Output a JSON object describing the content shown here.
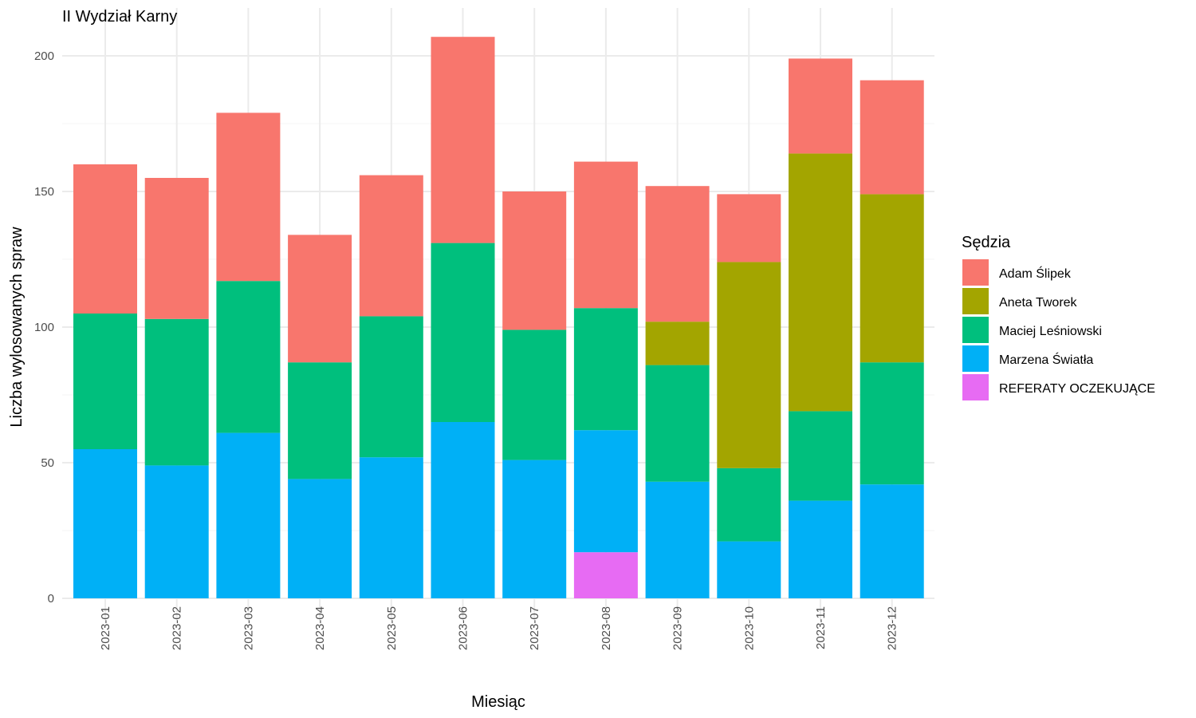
{
  "chart_data": {
    "type": "bar",
    "stacked": true,
    "title": "II Wydział Karny",
    "xlabel": "Miesiąc",
    "ylabel": "Liczba wylosowanych spraw",
    "ylim": [
      0,
      210
    ],
    "yticks": [
      0,
      50,
      100,
      150,
      200
    ],
    "grid": true,
    "legend_title": "Sędzia",
    "legend_position": "right",
    "categories": [
      "2023-01",
      "2023-02",
      "2023-03",
      "2023-04",
      "2023-05",
      "2023-06",
      "2023-07",
      "2023-08",
      "2023-09",
      "2023-10",
      "2023-11",
      "2023-12"
    ],
    "series": [
      {
        "name": "REFERATY OCZEKUJĄCE",
        "color": "#E76BF3",
        "values": [
          0,
          0,
          0,
          0,
          0,
          0,
          0,
          17,
          0,
          0,
          0,
          0
        ]
      },
      {
        "name": "Marzena Światła",
        "color": "#00B0F6",
        "values": [
          55,
          49,
          61,
          44,
          52,
          65,
          51,
          45,
          43,
          21,
          36,
          42
        ]
      },
      {
        "name": "Maciej Leśniowski",
        "color": "#00BF7D",
        "values": [
          50,
          54,
          56,
          43,
          52,
          66,
          48,
          45,
          43,
          27,
          33,
          45
        ]
      },
      {
        "name": "Aneta Tworek",
        "color": "#A3A500",
        "values": [
          0,
          0,
          0,
          0,
          0,
          0,
          0,
          0,
          16,
          76,
          95,
          62
        ]
      },
      {
        "name": "Adam Ślipek",
        "color": "#F8766D",
        "values": [
          55,
          52,
          62,
          47,
          52,
          76,
          51,
          54,
          50,
          25,
          35,
          42
        ]
      }
    ],
    "legend_order": [
      "Adam Ślipek",
      "Aneta Tworek",
      "Maciej Leśniowski",
      "Marzena Światła",
      "REFERATY OCZEKUJĄCE"
    ]
  }
}
